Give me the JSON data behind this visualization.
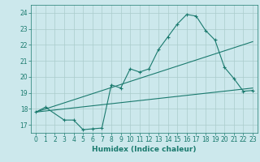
{
  "xlabel": "Humidex (Indice chaleur)",
  "bg_color": "#cce8ec",
  "grid_color": "#aacccc",
  "line_color": "#1a7a6e",
  "xlim": [
    -0.5,
    23.5
  ],
  "ylim": [
    16.5,
    24.5
  ],
  "yticks": [
    17,
    18,
    19,
    20,
    21,
    22,
    23,
    24
  ],
  "xticks": [
    0,
    1,
    2,
    3,
    4,
    5,
    6,
    7,
    8,
    9,
    10,
    11,
    12,
    13,
    14,
    15,
    16,
    17,
    18,
    19,
    20,
    21,
    22,
    23
  ],
  "line1_x": [
    0,
    1,
    3,
    4,
    5,
    6,
    7,
    8,
    9,
    10,
    11,
    12,
    13,
    14,
    15,
    16,
    17,
    18,
    19,
    20,
    21,
    22,
    23
  ],
  "line1_y": [
    17.8,
    18.1,
    17.3,
    17.3,
    16.7,
    16.75,
    16.8,
    19.5,
    19.3,
    20.5,
    20.3,
    20.5,
    21.7,
    22.5,
    23.3,
    23.9,
    23.8,
    22.9,
    22.3,
    20.6,
    19.9,
    19.1,
    19.15
  ],
  "line2_x": [
    0,
    23
  ],
  "line2_y": [
    17.8,
    22.2
  ],
  "line3_x": [
    0,
    23
  ],
  "line3_y": [
    17.8,
    19.3
  ]
}
